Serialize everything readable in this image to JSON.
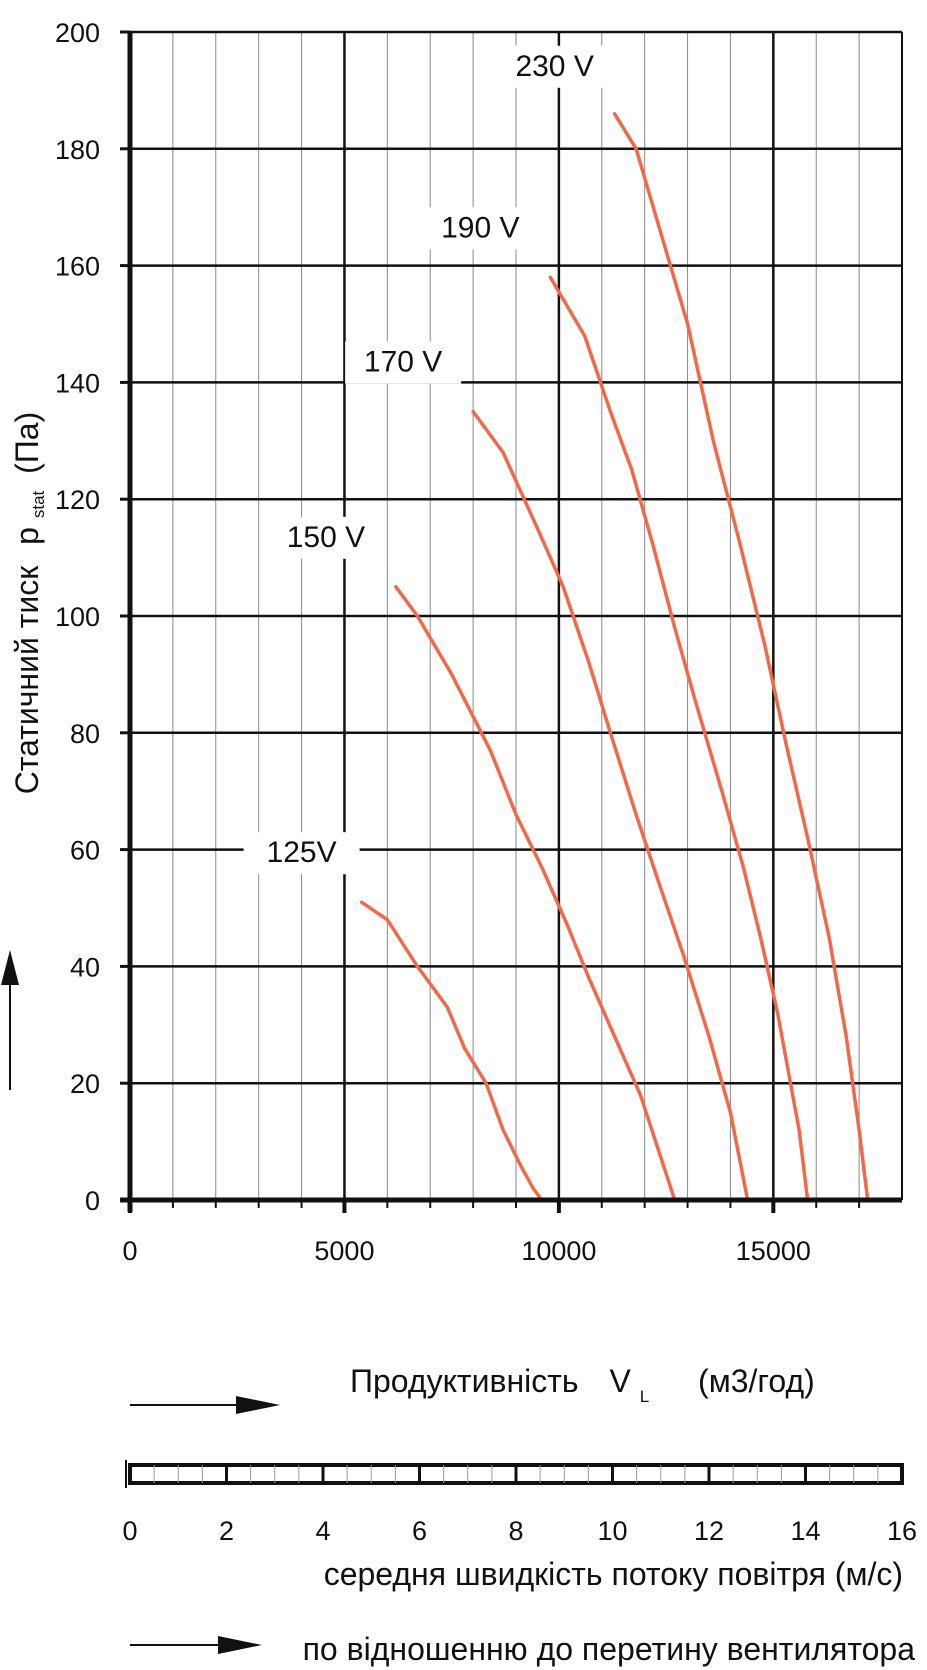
{
  "chart_data": {
    "type": "line",
    "ylabel": {
      "main": "Статичний тиск",
      "symbol": "p",
      "subscript": "stat",
      "unit": "(Па)"
    },
    "xlabel": {
      "main": "Продуктивність",
      "symbol": "V",
      "subscript": "L",
      "unit": "(м3/год)"
    },
    "xlim": [
      0,
      18000
    ],
    "ylim": [
      0,
      200
    ],
    "x_ticks": [
      "0",
      "5000",
      "10000",
      "15000"
    ],
    "y_ticks": [
      "0",
      "20",
      "40",
      "60",
      "80",
      "100",
      "120",
      "140",
      "160",
      "180",
      "200"
    ],
    "grid": true,
    "series": [
      {
        "name": "125V",
        "x": [
          5400,
          6000,
          6700,
          7400,
          7800,
          8300,
          8700,
          9100,
          9400,
          9600
        ],
        "y": [
          51,
          48,
          40,
          33,
          26,
          20,
          12,
          6,
          2,
          0
        ]
      },
      {
        "name": "150 V",
        "x": [
          6200,
          6700,
          7500,
          8400,
          9000,
          9600,
          10200,
          10700,
          11300,
          11900,
          12700
        ],
        "y": [
          105,
          100,
          90,
          77,
          66,
          57,
          47,
          38,
          28,
          18,
          0
        ]
      },
      {
        "name": "170 V",
        "x": [
          8000,
          8700,
          9500,
          10100,
          10700,
          11200,
          11800,
          12300,
          12900,
          13500,
          14000,
          14400
        ],
        "y": [
          135,
          128,
          115,
          105,
          92,
          80,
          66,
          55,
          42,
          28,
          15,
          0
        ]
      },
      {
        "name": "190 V",
        "x": [
          9800,
          10600,
          11200,
          11700,
          12200,
          12700,
          13200,
          13800,
          14300,
          14700,
          15100,
          15600,
          15800
        ],
        "y": [
          158,
          148,
          135,
          125,
          112,
          98,
          85,
          70,
          57,
          45,
          32,
          12,
          0
        ]
      },
      {
        "name": "230 V",
        "x": [
          11300,
          11800,
          12400,
          13000,
          13600,
          14200,
          14800,
          15300,
          15800,
          16300,
          16700,
          17000,
          17200
        ],
        "y": [
          186,
          180,
          165,
          150,
          130,
          113,
          95,
          78,
          62,
          45,
          28,
          12,
          0
        ]
      }
    ],
    "velocity_scale": {
      "ticks": [
        "0",
        "2",
        "4",
        "6",
        "8",
        "10",
        "12",
        "14",
        "16"
      ],
      "label": "середня швидкість потоку повітря (м/с)",
      "note": "по відношенню до перетину вентилятора"
    },
    "colors": {
      "curve": "#ef6a4a",
      "major_grid": "#111111",
      "minor_grid": "#8a8a8a"
    }
  }
}
